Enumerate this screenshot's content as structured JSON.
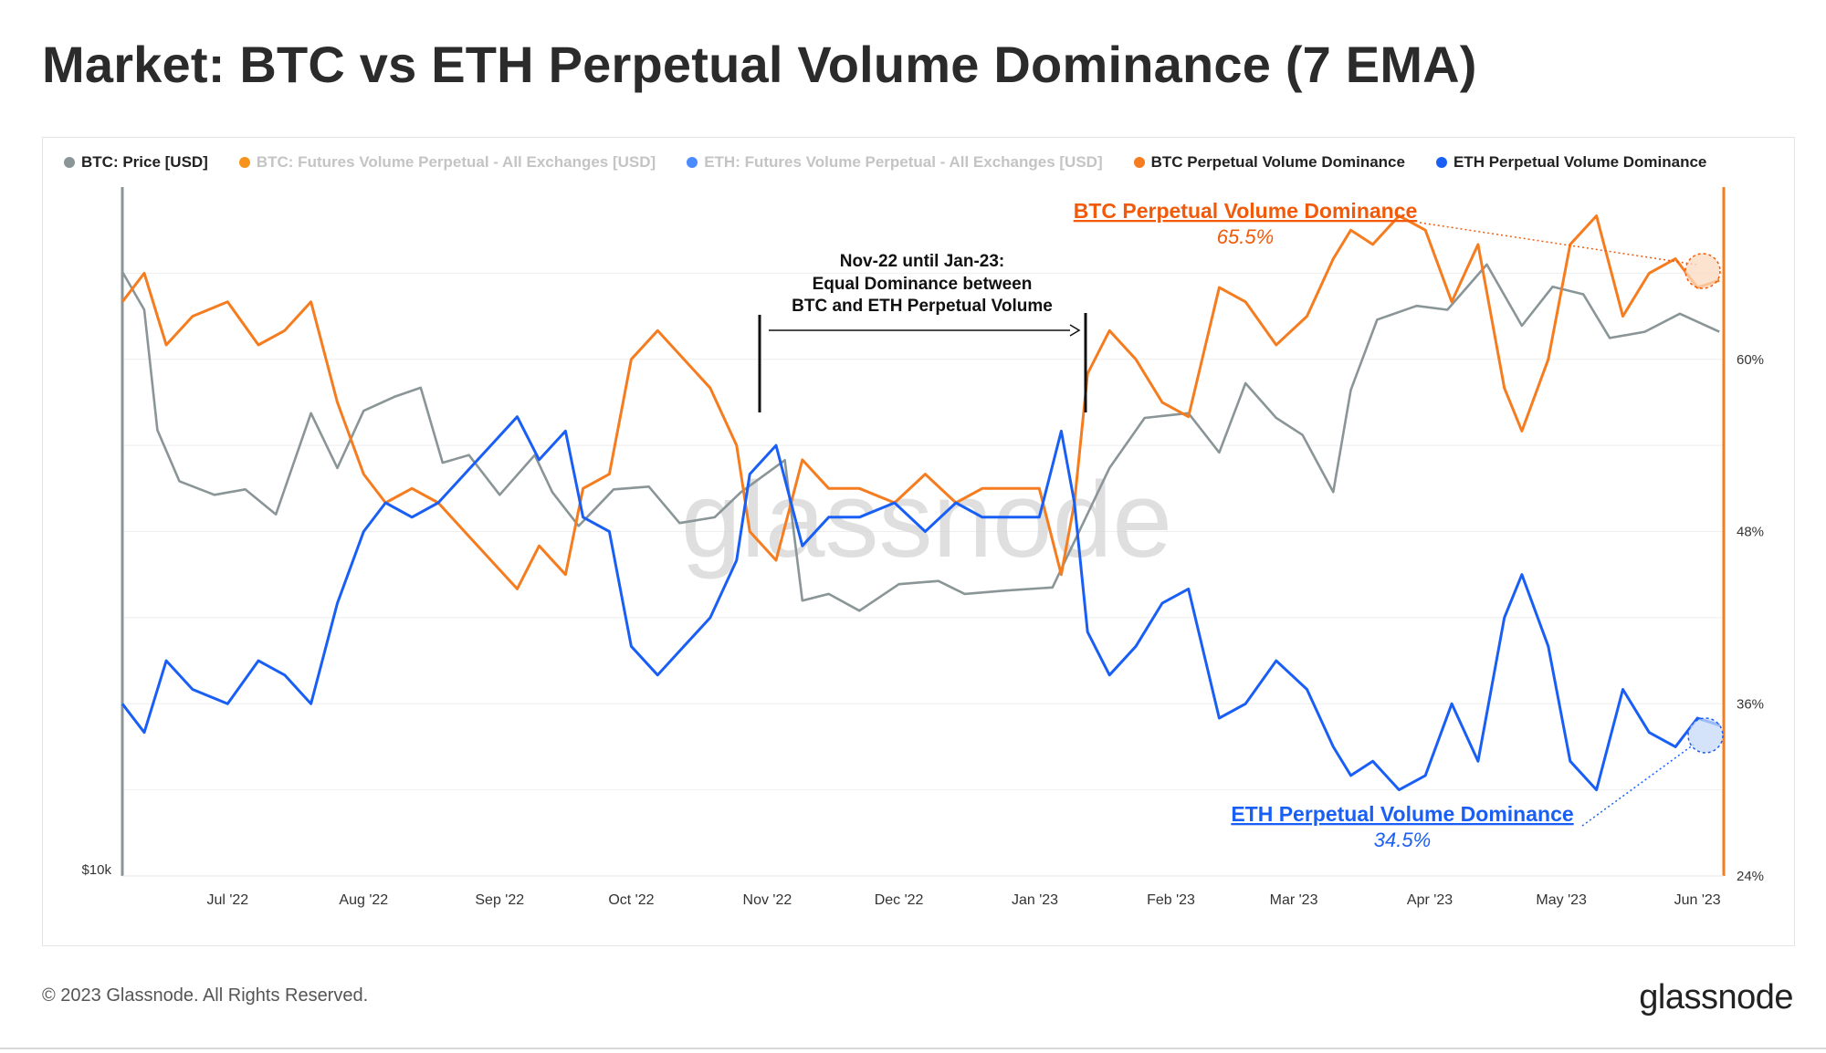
{
  "title": "Market: BTC vs ETH Perpetual Volume Dominance (7 EMA)",
  "legend": [
    {
      "label": "BTC: Price [USD]",
      "color": "#8a9597",
      "muted": false
    },
    {
      "label": "BTC: Futures Volume Perpetual - All Exchanges [USD]",
      "color": "#f7931a",
      "muted": true
    },
    {
      "label": "ETH: Futures Volume Perpetual - All Exchanges [USD]",
      "color": "#4a8cff",
      "muted": true
    },
    {
      "label": "BTC Perpetual Volume Dominance",
      "color": "#f57c1f",
      "muted": false
    },
    {
      "label": "ETH Perpetual Volume Dominance",
      "color": "#1a5ff5",
      "muted": false
    }
  ],
  "annotations": {
    "btc_label": "BTC Perpetual Volume Dominance",
    "btc_value": "65.5%",
    "eth_label": "ETH Perpetual Volume Dominance",
    "eth_value": "34.5%",
    "range_line1": "Nov-22 until Jan-23:",
    "range_line2": "Equal Dominance between",
    "range_line3": "BTC and ETH Perpetual Volume"
  },
  "watermark": "glassnode",
  "footer": {
    "copyright": "© 2023 Glassnode. All Rights Reserved.",
    "logo": "glassnode"
  },
  "colors": {
    "btc_dominance": "#f57c1f",
    "eth_dominance": "#1a5ff5",
    "btc_price": "#8a9597",
    "right_axis": "#f57c1f",
    "left_axis": "#8a9597"
  },
  "chart_data": {
    "type": "line",
    "x_range": [
      "2022-06-07",
      "2023-06-07"
    ],
    "x_ticks": [
      "Jul '22",
      "Aug '22",
      "Sep '22",
      "Oct '22",
      "Nov '22",
      "Dec '22",
      "Jan '23",
      "Feb '23",
      "Mar '23",
      "Apr '23",
      "May '23",
      "Jun '23"
    ],
    "left_axis": {
      "ticks": [
        "$10k"
      ],
      "scale": "log"
    },
    "right_axis": {
      "ticks": [
        "24%",
        "36%",
        "48%",
        "60%"
      ],
      "ylim": [
        24,
        72
      ]
    },
    "grid": true,
    "legend_position": "top",
    "series": [
      {
        "name": "BTC Perpetual Volume Dominance",
        "axis": "right",
        "x": [
          "2022-06-07",
          "2022-06-12",
          "2022-06-17",
          "2022-06-23",
          "2022-07-01",
          "2022-07-08",
          "2022-07-14",
          "2022-07-20",
          "2022-07-26",
          "2022-08-01",
          "2022-08-06",
          "2022-08-12",
          "2022-08-18",
          "2022-08-24",
          "2022-08-30",
          "2022-09-05",
          "2022-09-10",
          "2022-09-16",
          "2022-09-20",
          "2022-09-26",
          "2022-10-01",
          "2022-10-07",
          "2022-10-13",
          "2022-10-19",
          "2022-10-25",
          "2022-10-28",
          "2022-11-03",
          "2022-11-09",
          "2022-11-15",
          "2022-11-22",
          "2022-11-30",
          "2022-12-07",
          "2022-12-14",
          "2022-12-20",
          "2022-12-27",
          "2023-01-02",
          "2023-01-07",
          "2023-01-10",
          "2023-01-13",
          "2023-01-18",
          "2023-01-24",
          "2023-01-30",
          "2023-02-05",
          "2023-02-12",
          "2023-02-18",
          "2023-02-25",
          "2023-03-04",
          "2023-03-10",
          "2023-03-14",
          "2023-03-19",
          "2023-03-25",
          "2023-03-31",
          "2023-04-06",
          "2023-04-12",
          "2023-04-18",
          "2023-04-22",
          "2023-04-28",
          "2023-05-03",
          "2023-05-09",
          "2023-05-15",
          "2023-05-21",
          "2023-05-27",
          "2023-06-01",
          "2023-06-06"
        ],
        "y": [
          64,
          66,
          61,
          63,
          64,
          61,
          62,
          64,
          57,
          52,
          50,
          51,
          50,
          48,
          46,
          44,
          47,
          45,
          51,
          52,
          60,
          62,
          60,
          58,
          54,
          48,
          46,
          53,
          51,
          51,
          50,
          52,
          50,
          51,
          51,
          51,
          45,
          50,
          59,
          62,
          60,
          57,
          56,
          65,
          64,
          61,
          63,
          67,
          69,
          68,
          70,
          69,
          64,
          68,
          58,
          55,
          60,
          68,
          70,
          63,
          66,
          67,
          65,
          65.5
        ]
      },
      {
        "name": "ETH Perpetual Volume Dominance",
        "axis": "right",
        "x": [
          "2022-06-07",
          "2022-06-12",
          "2022-06-17",
          "2022-06-23",
          "2022-07-01",
          "2022-07-08",
          "2022-07-14",
          "2022-07-20",
          "2022-07-26",
          "2022-08-01",
          "2022-08-06",
          "2022-08-12",
          "2022-08-18",
          "2022-08-24",
          "2022-08-30",
          "2022-09-05",
          "2022-09-10",
          "2022-09-16",
          "2022-09-20",
          "2022-09-26",
          "2022-10-01",
          "2022-10-07",
          "2022-10-13",
          "2022-10-19",
          "2022-10-25",
          "2022-10-28",
          "2022-11-03",
          "2022-11-09",
          "2022-11-15",
          "2022-11-22",
          "2022-11-30",
          "2022-12-07",
          "2022-12-14",
          "2022-12-20",
          "2022-12-27",
          "2023-01-02",
          "2023-01-07",
          "2023-01-10",
          "2023-01-13",
          "2023-01-18",
          "2023-01-24",
          "2023-01-30",
          "2023-02-05",
          "2023-02-12",
          "2023-02-18",
          "2023-02-25",
          "2023-03-04",
          "2023-03-10",
          "2023-03-14",
          "2023-03-19",
          "2023-03-25",
          "2023-03-31",
          "2023-04-06",
          "2023-04-12",
          "2023-04-18",
          "2023-04-22",
          "2023-04-28",
          "2023-05-03",
          "2023-05-09",
          "2023-05-15",
          "2023-05-21",
          "2023-05-27",
          "2023-06-01",
          "2023-06-06"
        ],
        "y": [
          36,
          34,
          39,
          37,
          36,
          39,
          38,
          36,
          43,
          48,
          50,
          49,
          50,
          52,
          54,
          56,
          53,
          55,
          49,
          48,
          40,
          38,
          40,
          42,
          46,
          52,
          54,
          47,
          49,
          49,
          50,
          48,
          50,
          49,
          49,
          49,
          55,
          50,
          41,
          38,
          40,
          43,
          44,
          35,
          36,
          39,
          37,
          33,
          31,
          32,
          30,
          31,
          36,
          32,
          42,
          45,
          40,
          32,
          30,
          37,
          34,
          33,
          35,
          34.5
        ]
      },
      {
        "name": "BTC: Price [USD]",
        "axis": "left",
        "x": [
          "2022-06-07",
          "2022-06-12",
          "2022-06-15",
          "2022-06-20",
          "2022-06-28",
          "2022-07-05",
          "2022-07-12",
          "2022-07-20",
          "2022-07-26",
          "2022-08-01",
          "2022-08-08",
          "2022-08-14",
          "2022-08-19",
          "2022-08-25",
          "2022-09-01",
          "2022-09-09",
          "2022-09-13",
          "2022-09-19",
          "2022-09-27",
          "2022-10-05",
          "2022-10-12",
          "2022-10-20",
          "2022-10-26",
          "2022-11-05",
          "2022-11-09",
          "2022-11-15",
          "2022-11-22",
          "2022-12-01",
          "2022-12-10",
          "2022-12-16",
          "2022-12-25",
          "2023-01-05",
          "2023-01-12",
          "2023-01-18",
          "2023-01-26",
          "2023-02-05",
          "2023-02-12",
          "2023-02-18",
          "2023-02-25",
          "2023-03-03",
          "2023-03-10",
          "2023-03-14",
          "2023-03-20",
          "2023-03-29",
          "2023-04-05",
          "2023-04-14",
          "2023-04-22",
          "2023-04-29",
          "2023-05-06",
          "2023-05-12",
          "2023-05-20",
          "2023-05-28",
          "2023-06-06"
        ],
        "y": [
          30000,
          28000,
          22500,
          20500,
          20000,
          20200,
          19300,
          23200,
          21000,
          23300,
          23900,
          24300,
          21200,
          21500,
          20000,
          21500,
          20100,
          18900,
          20200,
          20300,
          19000,
          19200,
          20100,
          21300,
          16500,
          16700,
          16200,
          17000,
          17100,
          16700,
          16800,
          16900,
          19000,
          21000,
          23000,
          23200,
          21600,
          24500,
          23000,
          22300,
          20100,
          24200,
          27500,
          28200,
          28000,
          30400,
          27200,
          29200,
          28800,
          26600,
          26900,
          27800,
          26900
        ]
      }
    ]
  }
}
